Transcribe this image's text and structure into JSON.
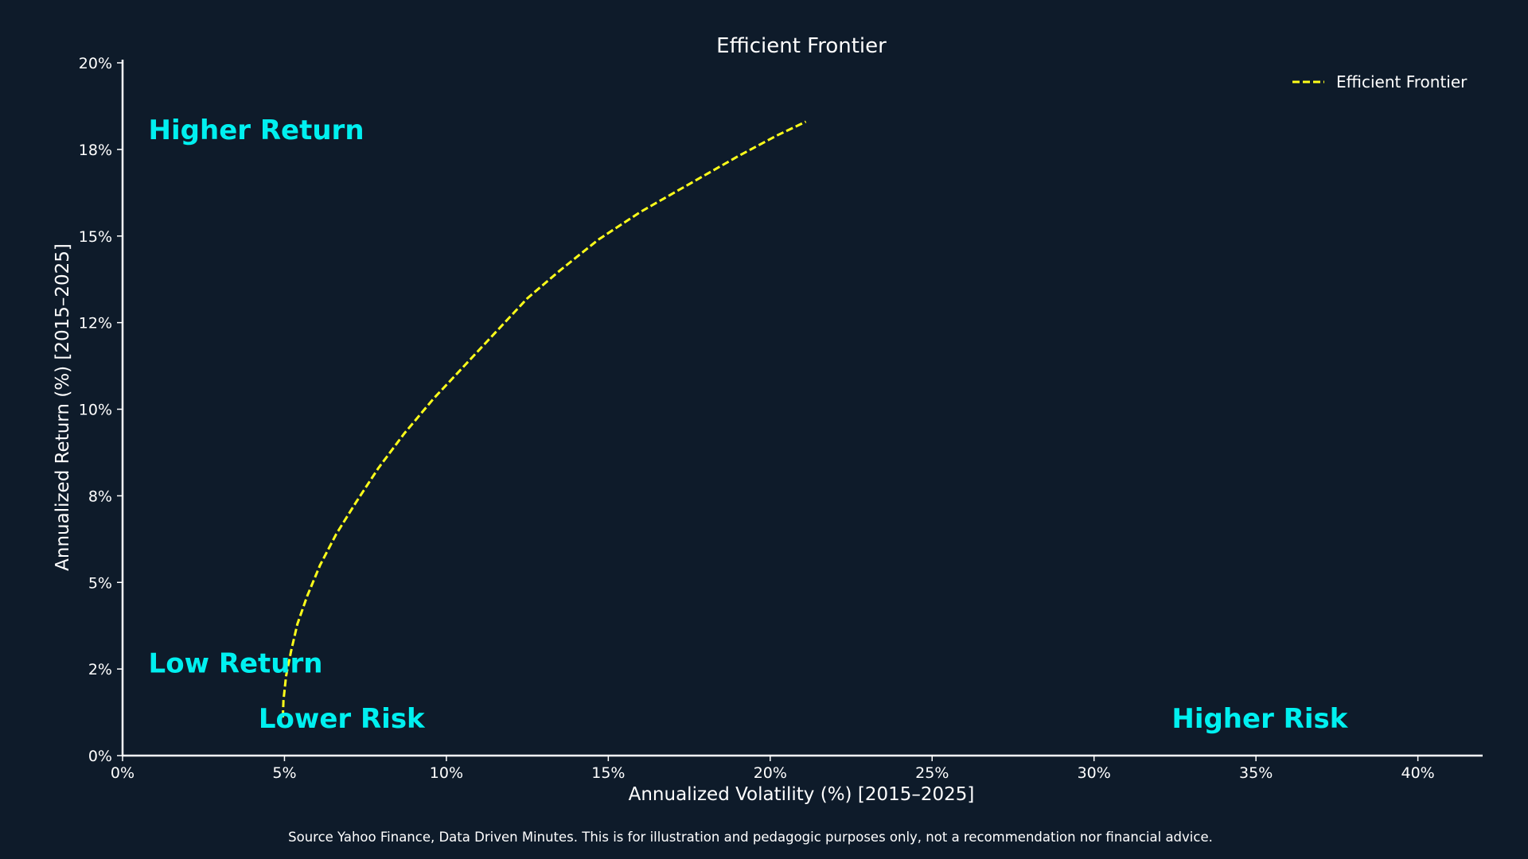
{
  "chart_data": {
    "type": "line",
    "title": "Efficient Frontier",
    "xlabel": "Annualized Volatility (%) [2015–2025]",
    "ylabel": "Annualized Return (%) [2015–2025]",
    "xlim": [
      0,
      42
    ],
    "ylim": [
      0,
      20
    ],
    "x_ticks": [
      0,
      5,
      10,
      15,
      20,
      25,
      30,
      35,
      40
    ],
    "x_tick_labels": [
      "0%",
      "5%",
      "10%",
      "15%",
      "20%",
      "25%",
      "30%",
      "35%",
      "40%"
    ],
    "y_ticks": [
      0,
      2.5,
      5,
      7.5,
      10,
      12.5,
      15,
      17.5,
      20
    ],
    "y_tick_labels": [
      "0%",
      "2%",
      "5%",
      "8%",
      "10%",
      "12%",
      "15%",
      "18%",
      "20%"
    ],
    "grid": false,
    "legend_position": "top-right",
    "series": [
      {
        "name": "Efficient Frontier",
        "color": "#ffff1a",
        "line_style": "dashed",
        "x": [
          4.95,
          4.97,
          5.05,
          5.2,
          5.4,
          5.7,
          6.1,
          6.6,
          7.2,
          7.9,
          8.7,
          9.6,
          10.5,
          11.5,
          12.5,
          13.5,
          14.7,
          16.0,
          17.5,
          19.0,
          20.2,
          21.1
        ],
        "y": [
          1.1,
          1.6,
          2.3,
          3.0,
          3.8,
          4.6,
          5.5,
          6.4,
          7.3,
          8.3,
          9.3,
          10.3,
          11.2,
          12.2,
          13.2,
          14.0,
          14.9,
          15.7,
          16.5,
          17.3,
          17.9,
          18.3
        ]
      }
    ],
    "annotations": [
      {
        "text": "Higher Return",
        "x": 0.8,
        "y": 17.8
      },
      {
        "text": "Low Return",
        "x": 0.8,
        "y": 2.4
      },
      {
        "text": "Lower Risk",
        "x": 4.2,
        "y": 0.8
      },
      {
        "text": "Higher Risk",
        "x": 32.4,
        "y": 0.8
      }
    ],
    "annotation_color": "#00f0f0",
    "footnote": "Source Yahoo Finance, Data Driven Minutes. This is for illustration and pedagogic purposes only, not a recommendation nor financial advice."
  }
}
